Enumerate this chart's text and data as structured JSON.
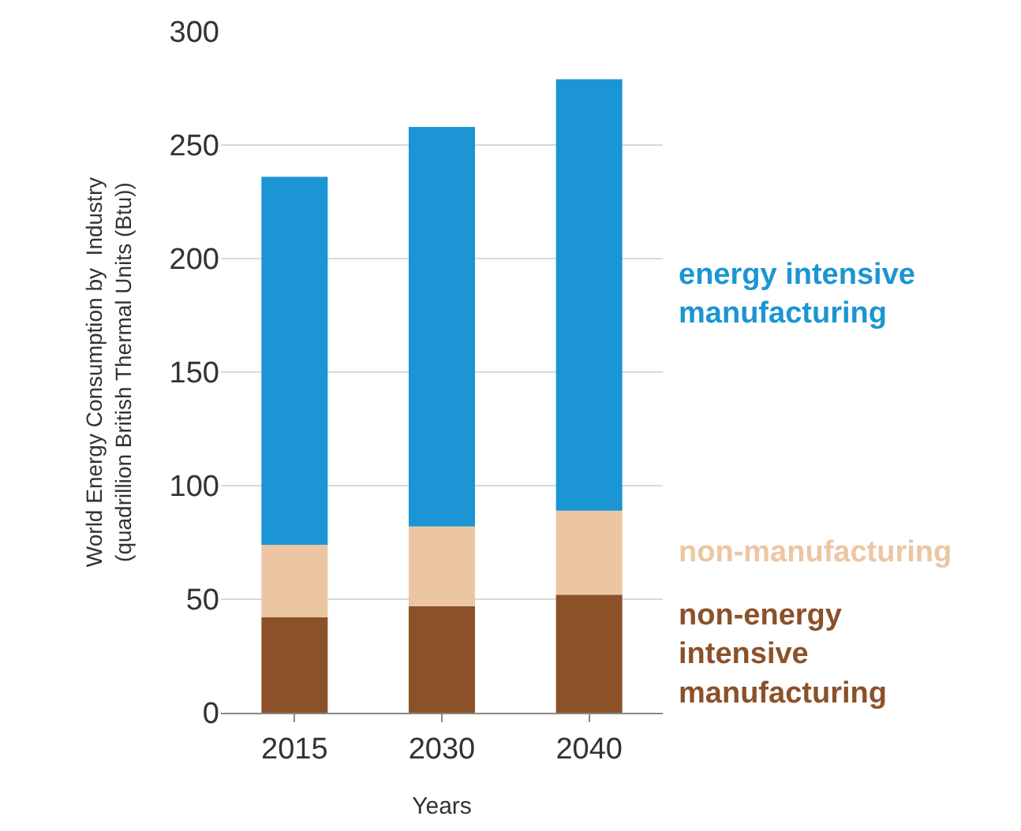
{
  "chart_data": {
    "type": "bar",
    "stacked": true,
    "xlabel": "Years",
    "ylabel": "World Energy Consumption by  Industry\n(quadrillion British Thermal Units (Btu))",
    "categories": [
      "2015",
      "2030",
      "2040"
    ],
    "series": [
      {
        "name": "non-energy\nintensive\nmanufacturing",
        "color": "#8b5129",
        "values": [
          42,
          47,
          52
        ]
      },
      {
        "name": "non-manufacturing",
        "color": "#ecc6a2",
        "values": [
          32,
          35,
          37
        ]
      },
      {
        "name": "energy intensive\nmanufacturing",
        "color": "#1b95d3",
        "values": [
          162,
          176,
          190
        ]
      }
    ],
    "ylim": [
      0,
      300
    ],
    "yticks": [
      0,
      50,
      100,
      150,
      200,
      250,
      300
    ],
    "grid": "y",
    "legend": false
  }
}
